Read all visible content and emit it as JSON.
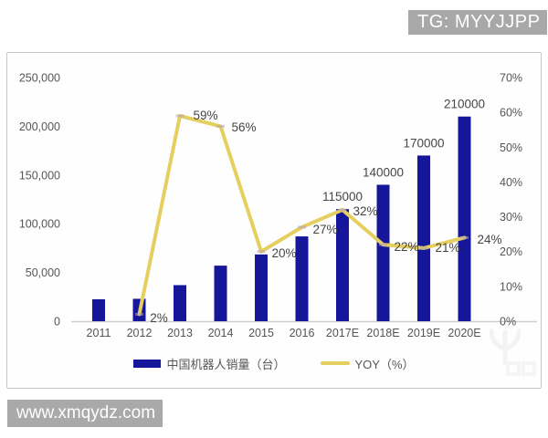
{
  "badge": {
    "text": "TG: MYYJJPP"
  },
  "site_watermark": {
    "text": "www.xmqydz.com"
  },
  "chart_data": {
    "type": "combo",
    "title": "",
    "categories": [
      "2011",
      "2012",
      "2013",
      "2014",
      "2015",
      "2016",
      "2017E",
      "2018E",
      "2019E",
      "2020E"
    ],
    "series": [
      {
        "name": "中国机器人销量（台）",
        "type": "bar",
        "color": "#16169a",
        "axis": "left",
        "values": [
          22500,
          23000,
          37000,
          57000,
          68500,
          87000,
          115000,
          140000,
          170000,
          210000
        ],
        "data_labels": [
          "",
          "",
          "",
          "",
          "",
          "",
          "115000",
          "140000",
          "170000",
          "210000"
        ]
      },
      {
        "name": "YOY（%）",
        "type": "line",
        "color": "#e5cf5f",
        "axis": "right",
        "values": [
          null,
          2,
          59,
          56,
          20,
          27,
          32,
          22,
          21,
          24
        ],
        "data_labels": [
          "",
          "2%",
          "59%",
          "56%",
          "20%",
          "27%",
          "32%",
          "22%",
          "21%",
          "24%"
        ]
      }
    ],
    "left_axis": {
      "min": 0,
      "max": 250000,
      "tick_values": [
        0,
        50000,
        100000,
        150000,
        200000,
        250000
      ],
      "ticks": [
        "0",
        "50,000",
        "100,000",
        "150,000",
        "200,000",
        "250,000"
      ]
    },
    "right_axis": {
      "min": 0,
      "max": 70,
      "tick_values": [
        0,
        10,
        20,
        30,
        40,
        50,
        60,
        70
      ],
      "ticks": [
        "0%",
        "10%",
        "20%",
        "30%",
        "40%",
        "50%",
        "60%",
        "70%"
      ]
    },
    "grid": false,
    "legend_position": "bottom"
  }
}
